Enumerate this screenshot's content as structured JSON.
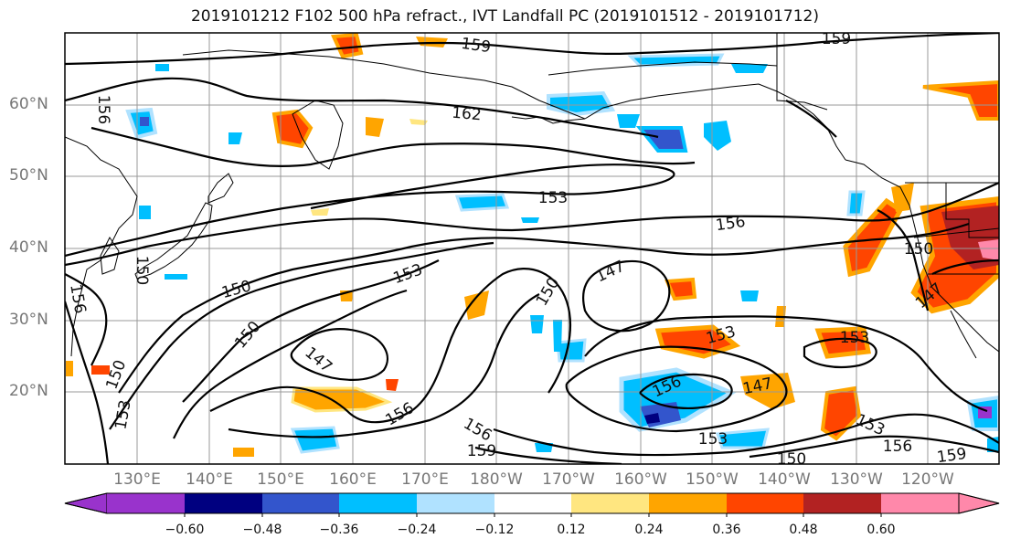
{
  "title": "2019101212 F102 500 hPa refract., IVT Landfall PC (2019101512 - 2019101712)",
  "lat_labels": [
    "60°N",
    "50°N",
    "40°N",
    "30°N",
    "20°N"
  ],
  "lon_labels": [
    "130°E",
    "140°E",
    "150°E",
    "160°E",
    "170°E",
    "180°W",
    "170°W",
    "160°W",
    "150°W",
    "140°W",
    "130°W",
    "120°W"
  ],
  "contour_labels": [
    "159",
    "159",
    "162",
    "156",
    "153",
    "156",
    "150",
    "147",
    "153",
    "150",
    "150",
    "150",
    "147",
    "150",
    "156",
    "156",
    "159",
    "153",
    "156",
    "153",
    "147",
    "153",
    "153",
    "156",
    "159",
    "150",
    "147",
    "153",
    "150",
    "156"
  ],
  "colorbar": {
    "ticks": [
      "−0.60",
      "−0.48",
      "−0.36",
      "−0.24",
      "−0.12",
      "0.12",
      "0.24",
      "0.36",
      "0.48",
      "0.60"
    ],
    "colors": [
      "#9933cc",
      "#000080",
      "#3355cc",
      "#00bfff",
      "#b0e2ff",
      "#ffffff",
      "#ffe680",
      "#ffa500",
      "#ff4500",
      "#b22222",
      "#ff88aa"
    ]
  },
  "colors": {
    "contour": "#000000",
    "coast": "#000000",
    "grid": "#999999",
    "axis_label": "#777777"
  }
}
